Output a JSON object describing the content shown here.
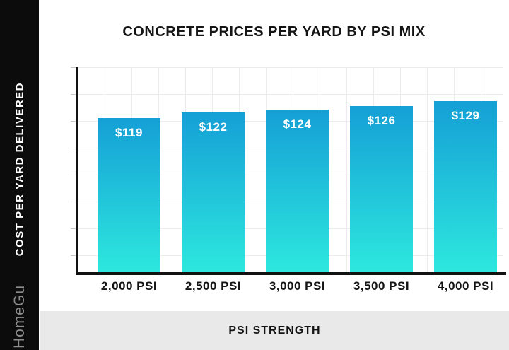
{
  "chart_data": {
    "type": "bar",
    "title": "CONCRETE PRICES PER YARD BY PSI MIX",
    "categories": [
      "2,000 PSI",
      "2,500 PSI",
      "3,000 PSI",
      "3,500 PSI",
      "4,000 PSI"
    ],
    "values": [
      119,
      122,
      124,
      126,
      129
    ],
    "value_labels": [
      "$119",
      "$122",
      "$124",
      "$126",
      "$129"
    ],
    "xlabel": "PSI STRENGTH",
    "ylabel": "COST PER YARD DELIVERED",
    "grid": true,
    "legend": false,
    "colors": {
      "bar_gradient_top": "#159fd6",
      "bar_gradient_bottom": "#2de8de",
      "axis": "#121212",
      "grid_line": "#ececec",
      "bar_value_text": "#ffffff",
      "title_text": "#151515"
    }
  },
  "sidebar": {
    "watermark": "HomeGu",
    "background": "#0c0c0c"
  },
  "footer": {
    "background": "#e9e9e9"
  }
}
